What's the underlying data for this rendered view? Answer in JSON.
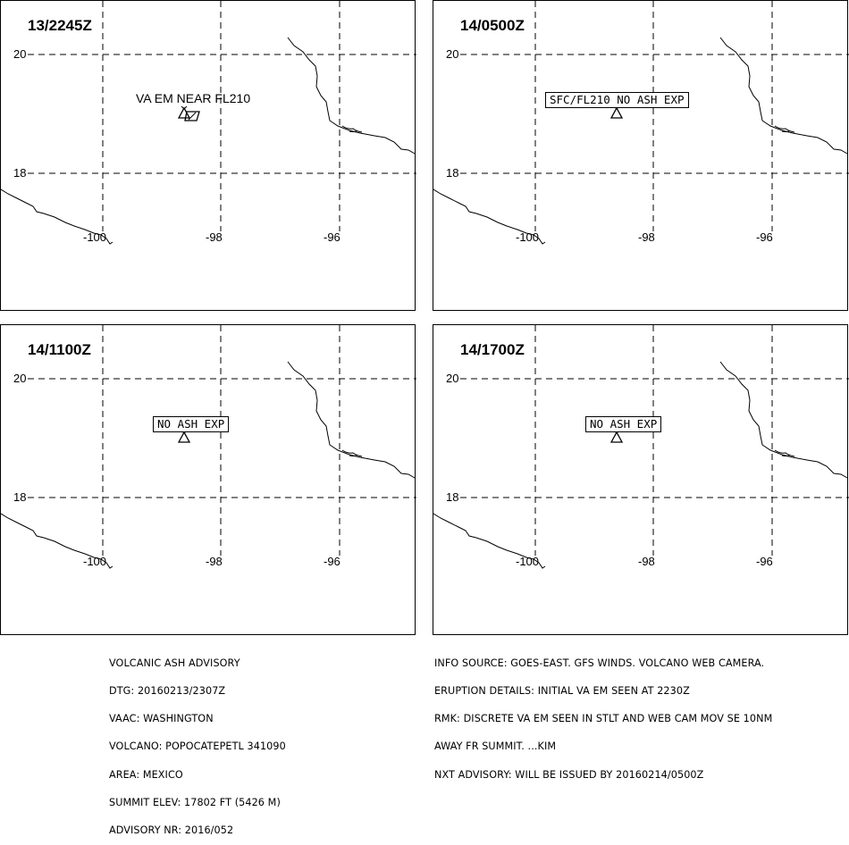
{
  "panels": [
    {
      "time": "13/2245Z",
      "label": "VA EM NEAR FL210",
      "label_style": "plain"
    },
    {
      "time": "14/0500Z",
      "label": "SFC/FL210 NO ASH EXP",
      "label_style": "boxed"
    },
    {
      "time": "14/1100Z",
      "label": "NO ASH EXP",
      "label_style": "boxed"
    },
    {
      "time": "14/1700Z",
      "label": "NO ASH EXP",
      "label_style": "boxed"
    }
  ],
  "axes": {
    "lat_20": "20",
    "lat_18": "18",
    "lon_100": "-100",
    "lon_98": "-98",
    "lon_96": "-96"
  },
  "advisory_left": [
    "VOLCANIC ASH ADVISORY",
    "DTG: 20160213/2307Z",
    "VAAC: WASHINGTON",
    "VOLCANO: POPOCATEPETL 341090",
    "AREA: MEXICO",
    "SUMMIT ELEV: 17802 FT (5426 M)",
    "ADVISORY NR: 2016/052"
  ],
  "advisory_right": [
    "INFO SOURCE: GOES-EAST. GFS WINDS. VOLCANO WEB CAMERA.",
    "ERUPTION DETAILS: INITIAL VA EM SEEN AT 2230Z",
    "RMK: DISCRETE VA EM SEEN IN STLT AND WEB CAM MOV SE 10NM",
    "AWAY FR SUMMIT. ...KIM",
    "NXT ADVISORY: WILL BE ISSUED BY 20160214/0500Z"
  ]
}
